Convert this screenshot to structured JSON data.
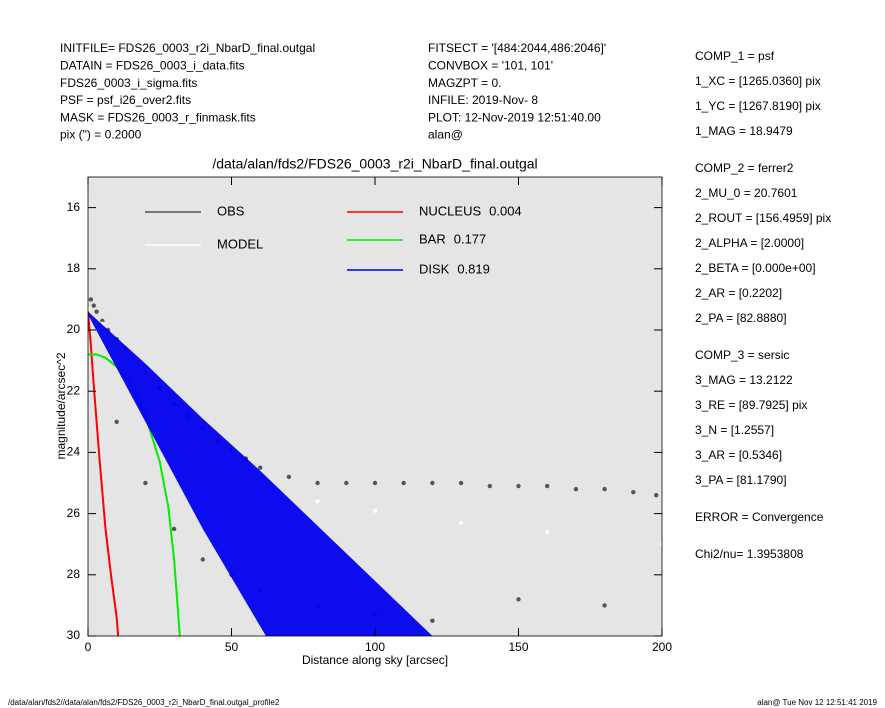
{
  "header": {
    "left": [
      "INITFILE= FDS26_0003_r2i_NbarD_final.outgal",
      "DATAIN  = FDS26_0003_i_data.fits",
      "FDS26_0003_i_sigma.fits",
      "PSF    = psf_i26_over2.fits",
      "MASK    = FDS26_0003_r_finmask.fits",
      "pix (\") =  0.2000"
    ],
    "middle": [
      "FITSECT = '[484:2044,486:2046]'",
      "CONVBOX = '101, 101'",
      "MAGZPT  =              0.",
      "INFILE: 2019-Nov- 8",
      "PLOT: 12-Nov-2019 12:51:40.00",
      "alan@"
    ],
    "right": [
      [
        "COMP_1  = psf",
        "1_XC    = [1265.0360] pix",
        "1_YC    = [1267.8190] pix",
        "1_MAG   = 18.9479"
      ],
      [
        "COMP_2  = ferrer2",
        "2_MU_0  = 20.7601",
        "2_ROUT  = [156.4959] pix",
        "2_ALPHA  = [2.0000]",
        "2_BETA  = [0.000e+00]",
        "2_AR    = [0.2202]",
        "2_PA    = [82.8880]"
      ],
      [
        "COMP_3  = sersic",
        "3_MAG   = 13.2122",
        "3_RE    = [89.7925] pix",
        "3_N     = [1.2557]",
        "3_AR    = [0.5346]",
        "3_PA    = [81.1790]"
      ],
      [
        "ERROR   = Convergence"
      ],
      [
        "Chi2/nu=       1.3953808"
      ]
    ]
  },
  "footer": {
    "left": "/data/alan/fds2//data/alan/fds2/FDS26_0003_r2i_NbarD_final.outgal_profile2",
    "right": "alan@  Tue Nov 12 12:51:41 2019"
  },
  "chart_data": {
    "type": "scatter",
    "title": "/data/alan/fds2/FDS26_0003_r2i_NbarD_final.outgal",
    "x_label": "Distance along sky [arcsec]",
    "y_label": "magnitude/arcsec^2",
    "xlim": [
      0,
      200
    ],
    "xticks": [
      0,
      50,
      100,
      150,
      200
    ],
    "ylim": [
      30,
      15
    ],
    "yticks": [
      16,
      18,
      20,
      22,
      24,
      26,
      28,
      30
    ],
    "background": "#e5e5e5",
    "series": [
      {
        "name": "OBS",
        "color": "#555555",
        "mode": "points",
        "x": [
          1,
          2,
          3,
          5,
          7,
          10,
          13,
          16,
          20,
          25,
          30,
          35,
          40,
          45,
          50,
          55,
          60,
          70,
          80,
          90,
          100,
          110,
          120,
          130,
          140,
          150,
          160,
          170,
          180,
          190,
          198,
          10,
          20,
          30,
          40,
          50,
          60,
          80,
          100,
          120,
          150,
          180
        ],
        "values": [
          19.0,
          19.2,
          19.4,
          19.7,
          20.0,
          20.3,
          20.6,
          20.9,
          21.4,
          21.9,
          22.4,
          22.8,
          23.2,
          23.6,
          23.9,
          24.2,
          24.5,
          24.8,
          25.0,
          25.0,
          25.0,
          25.0,
          25.0,
          25.0,
          25.1,
          25.1,
          25.1,
          25.2,
          25.2,
          25.3,
          25.4,
          23,
          25,
          26.5,
          27.5,
          28,
          28.5,
          29,
          29.3,
          29.5,
          28.8,
          29.0
        ]
      },
      {
        "name": "MODEL",
        "color": "#ffffff",
        "mode": "points",
        "x": [
          0,
          5,
          10,
          15,
          20,
          25,
          30,
          40,
          50,
          60,
          80,
          100,
          130,
          160,
          200
        ],
        "values": [
          19.3,
          19.8,
          20.4,
          21.0,
          21.6,
          22.2,
          22.8,
          23.8,
          24.7,
          25.2,
          25.6,
          25.9,
          26.3,
          26.6,
          27.0
        ]
      },
      {
        "name": "NUCLEUS",
        "fraction": 0.004,
        "color": "#ff0000",
        "mode": "line",
        "x": [
          0,
          1,
          2,
          3,
          4,
          5,
          6,
          8,
          10,
          10.5
        ],
        "values": [
          19.4,
          20.5,
          21.8,
          23,
          24.2,
          25.3,
          26.4,
          28,
          29.4,
          30
        ]
      },
      {
        "name": "BAR",
        "fraction": 0.177,
        "color": "#00ee00",
        "mode": "line",
        "x": [
          0,
          3,
          6,
          10,
          15,
          20,
          25,
          28,
          30,
          32
        ],
        "values": [
          20.8,
          20.8,
          20.9,
          21.2,
          21.8,
          22.8,
          24.3,
          25.8,
          27.5,
          30
        ]
      },
      {
        "name": "DISK",
        "fraction": 0.819,
        "color": "#0000ee",
        "mode": "band",
        "x": [
          0,
          20,
          40,
          60,
          80,
          100,
          120
        ],
        "values": [
          19.4,
          21.1,
          22.9,
          24.6,
          26.4,
          28.2,
          30
        ],
        "x2": [
          0,
          20,
          40,
          62
        ],
        "values2": [
          19.5,
          23.0,
          26.5,
          30
        ]
      }
    ]
  }
}
